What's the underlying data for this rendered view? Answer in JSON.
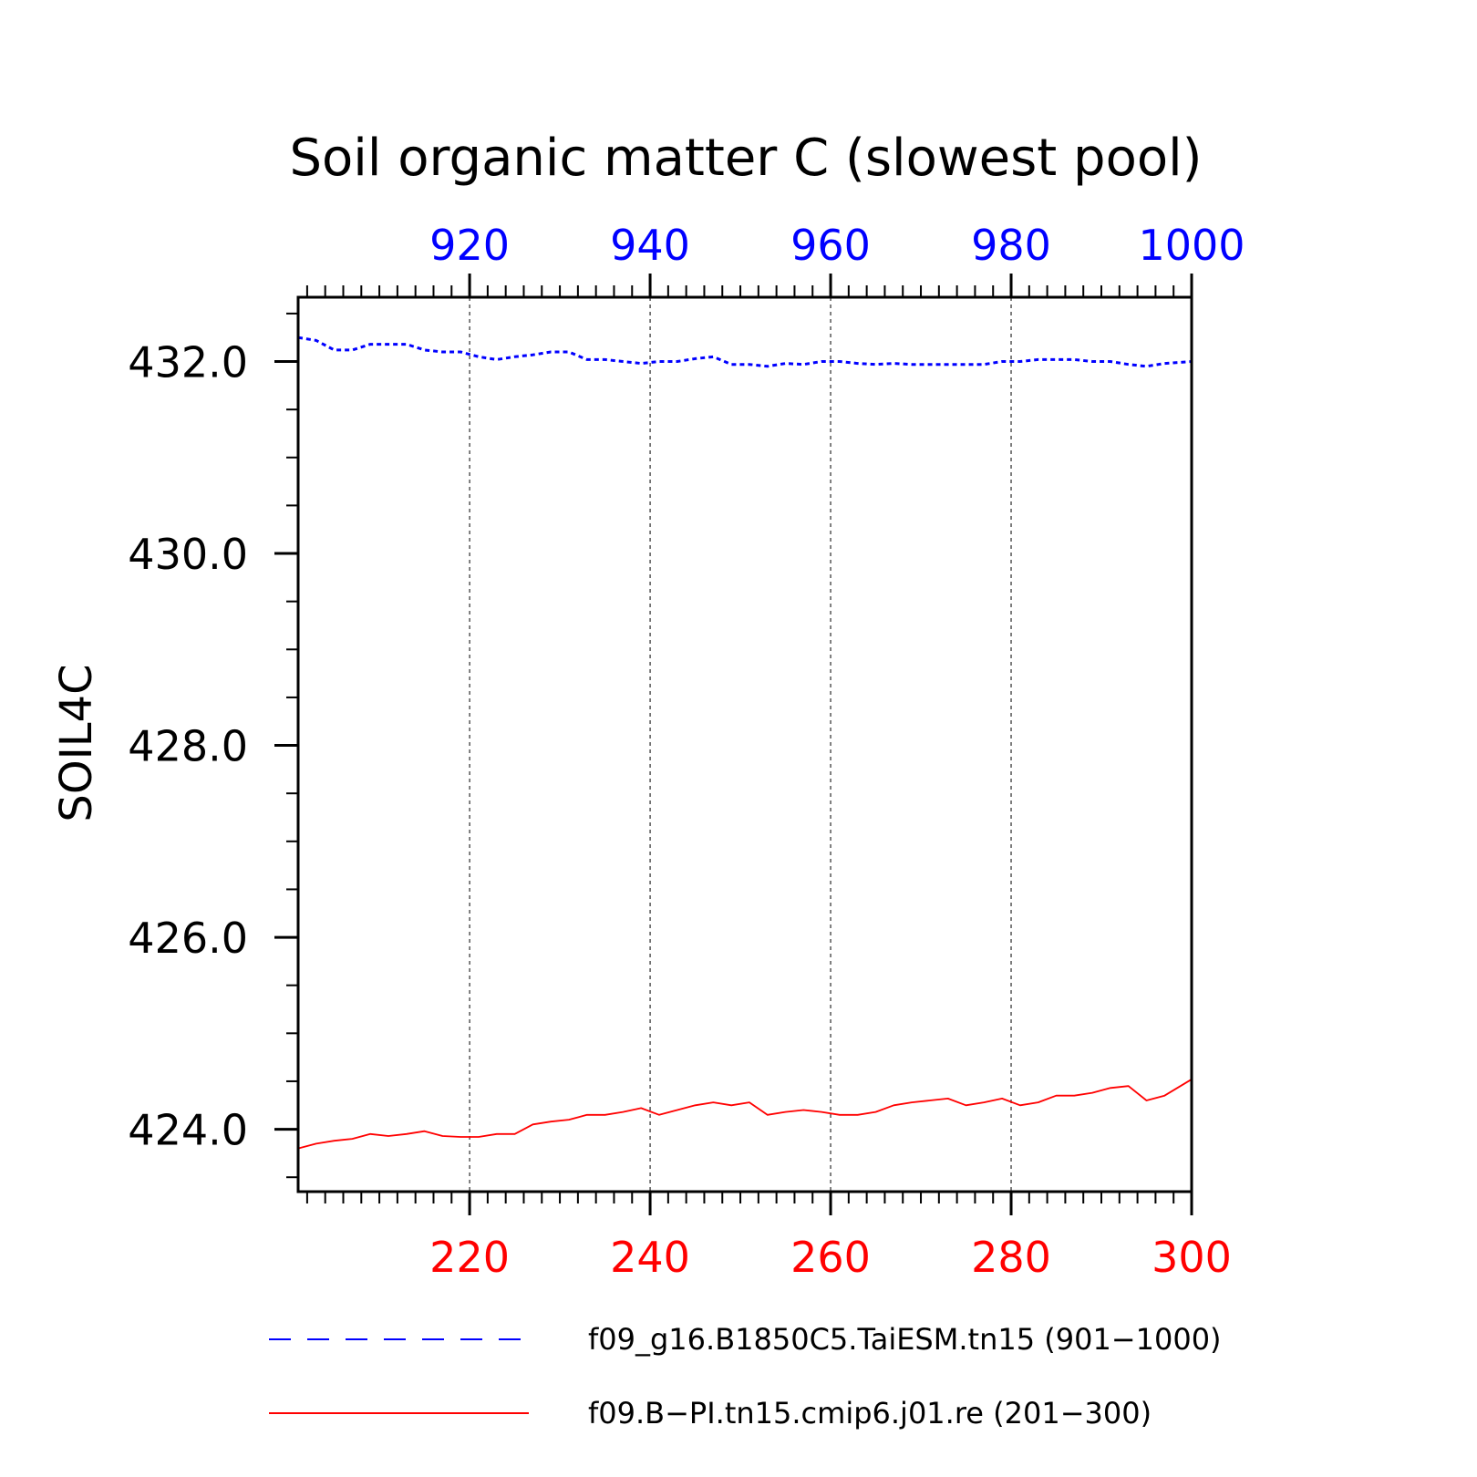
{
  "chart_data": {
    "type": "line",
    "title": "Soil organic matter C (slowest pool)",
    "ylabel": "SOIL4C",
    "xlabel": "",
    "ylim": [
      423.35,
      432.67
    ],
    "yticks": [
      424.0,
      426.0,
      428.0,
      430.0,
      432.0
    ],
    "ytick_labels": [
      "424.0",
      "426.0",
      "428.0",
      "430.0",
      "432.0"
    ],
    "grid": "vertical dashed at major x ticks",
    "legend_position": "bottom",
    "top_axis": {
      "range": [
        901,
        1000
      ],
      "ticks": [
        920,
        940,
        960,
        980,
        1000
      ],
      "tick_labels": [
        "920",
        "940",
        "960",
        "980",
        "1000"
      ],
      "color": "#0000ff"
    },
    "bottom_axis": {
      "range": [
        201,
        300
      ],
      "ticks": [
        220,
        240,
        260,
        280,
        300
      ],
      "tick_labels": [
        "220",
        "240",
        "260",
        "280",
        "300"
      ],
      "color": "#ff0000"
    },
    "series": [
      {
        "name": "f09_g16.B1850C5.TaiESM.tn15 (901−1000)",
        "color": "#0000ff",
        "style": "dashed",
        "axis": "top",
        "x": [
          901,
          903,
          905,
          907,
          909,
          911,
          913,
          915,
          917,
          919,
          921,
          923,
          925,
          927,
          929,
          931,
          933,
          935,
          937,
          939,
          941,
          943,
          945,
          947,
          949,
          951,
          953,
          955,
          957,
          959,
          961,
          963,
          965,
          967,
          969,
          971,
          973,
          975,
          977,
          979,
          981,
          983,
          985,
          987,
          989,
          991,
          993,
          995,
          997,
          1000
        ],
        "y": [
          432.25,
          432.22,
          432.12,
          432.12,
          432.18,
          432.18,
          432.18,
          432.12,
          432.1,
          432.1,
          432.05,
          432.02,
          432.05,
          432.07,
          432.1,
          432.1,
          432.02,
          432.02,
          432.0,
          431.98,
          432.0,
          432.0,
          432.03,
          432.05,
          431.97,
          431.97,
          431.95,
          431.98,
          431.97,
          432.0,
          432.0,
          431.98,
          431.97,
          431.98,
          431.97,
          431.97,
          431.97,
          431.97,
          431.97,
          432.0,
          432.0,
          432.02,
          432.02,
          432.02,
          432.0,
          432.0,
          431.97,
          431.95,
          431.98,
          432.0
        ]
      },
      {
        "name": "f09.B−PI.tn15.cmip6.j01.re (201−300)",
        "color": "#ff0000",
        "style": "solid",
        "axis": "bottom",
        "x": [
          201,
          203,
          205,
          207,
          209,
          211,
          213,
          215,
          217,
          219,
          221,
          223,
          225,
          227,
          229,
          231,
          233,
          235,
          237,
          239,
          241,
          243,
          245,
          247,
          249,
          251,
          253,
          255,
          257,
          259,
          261,
          263,
          265,
          267,
          269,
          271,
          273,
          275,
          277,
          279,
          281,
          283,
          285,
          287,
          289,
          291,
          293,
          295,
          297,
          300
        ],
        "y": [
          423.8,
          423.85,
          423.88,
          423.9,
          423.95,
          423.93,
          423.95,
          423.98,
          423.93,
          423.92,
          423.92,
          423.95,
          423.95,
          424.05,
          424.08,
          424.1,
          424.15,
          424.15,
          424.18,
          424.22,
          424.15,
          424.2,
          424.25,
          424.28,
          424.25,
          424.28,
          424.15,
          424.18,
          424.2,
          424.18,
          424.15,
          424.15,
          424.18,
          424.25,
          424.28,
          424.3,
          424.32,
          424.25,
          424.28,
          424.32,
          424.25,
          424.28,
          424.35,
          424.35,
          424.38,
          424.43,
          424.45,
          424.3,
          424.35,
          424.52
        ]
      }
    ]
  }
}
